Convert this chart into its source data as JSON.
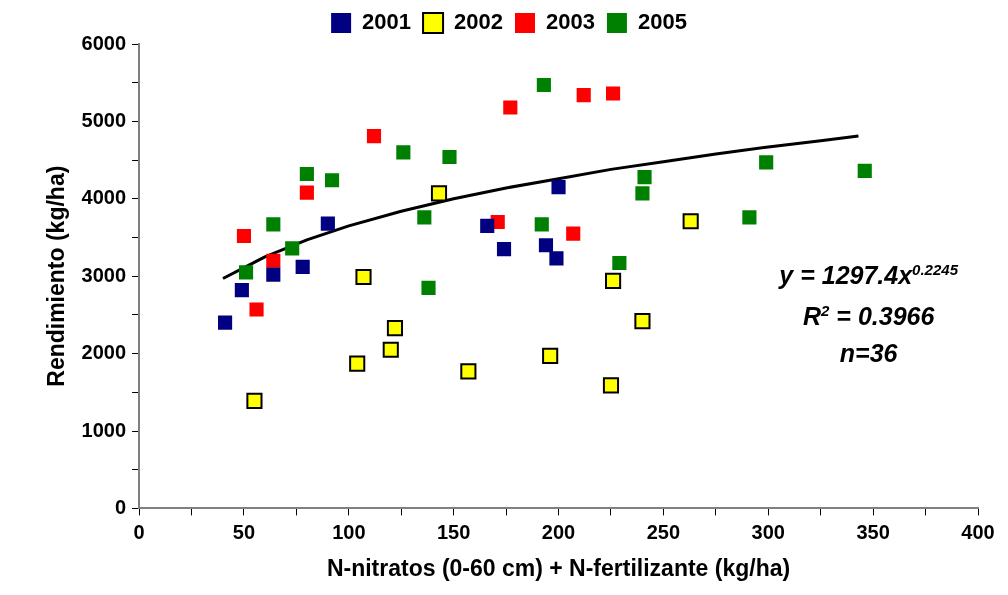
{
  "chart_data": {
    "type": "scatter",
    "xlabel": "N-nitratos (0-60 cm) + N-fertilizante (kg/ha)",
    "ylabel": "Rendimiento (kg/ha)",
    "xlim": [
      0,
      400
    ],
    "xticks": [
      0,
      {
        "value": 25,
        "label": null
      },
      50,
      {
        "value": 75,
        "label": null
      },
      100,
      {
        "value": 125,
        "label": null
      },
      150,
      {
        "value": 175,
        "label": null
      },
      200,
      {
        "value": 225,
        "label": null
      },
      250,
      {
        "value": 275,
        "label": null
      },
      300,
      {
        "value": 325,
        "label": null
      },
      350,
      {
        "value": 375,
        "label": null
      },
      400
    ],
    "ylim": [
      0,
      6000
    ],
    "yticks": [
      0,
      {
        "value": 500,
        "label": null
      },
      1000,
      {
        "value": 1500,
        "label": null
      },
      2000,
      {
        "value": 2500,
        "label": null
      },
      3000,
      {
        "value": 3500,
        "label": null
      },
      4000,
      {
        "value": 4500,
        "label": null
      },
      5000,
      {
        "value": 5500,
        "label": null
      },
      6000
    ],
    "grid": false,
    "legend": "top",
    "marker": "square",
    "series": [
      {
        "name": "2001",
        "color": "#000080",
        "x": [
          41,
          49,
          64,
          78,
          90,
          166,
          174,
          194,
          199,
          200
        ],
        "values": [
          2400,
          2820,
          3020,
          3120,
          3680,
          3650,
          3350,
          3400,
          3230,
          4150
        ]
      },
      {
        "name": "2002",
        "color": "#ffff00",
        "x": [
          55,
          107,
          104,
          120,
          122,
          143,
          157,
          196,
          226,
          225,
          240,
          263
        ],
        "values": [
          1390,
          2990,
          1870,
          2050,
          2330,
          4070,
          1770,
          1970,
          2940,
          1590,
          2420,
          3710
        ]
      },
      {
        "name": "2003",
        "color": "#ff0000",
        "x": [
          50,
          56,
          64,
          80,
          112,
          171,
          177,
          212,
          226,
          207
        ],
        "values": [
          3520,
          2570,
          3200,
          4080,
          4810,
          3700,
          5180,
          5340,
          5360,
          3550
        ]
      },
      {
        "name": "2005",
        "color": "#008000",
        "x": [
          51,
          64,
          73,
          80,
          92,
          126,
          148,
          193,
          192,
          136,
          241,
          240,
          299,
          291,
          346
        ],
        "values": [
          3050,
          3670,
          3360,
          4320,
          4240,
          4600,
          4540,
          5470,
          3670,
          3760,
          4280,
          4070,
          4470,
          3760,
          4360
        ]
      },
      {
        "color": "#008000",
        "x": [
          138,
          229
        ],
        "values": [
          2850,
          3170
        ]
      },
      {
        "type": "line",
        "color": "#000000",
        "marker": "none",
        "x": [
          40,
          60,
          80,
          100,
          125,
          150,
          175,
          200,
          225,
          250,
          275,
          300,
          325,
          343
        ],
        "values": [
          2970,
          3250,
          3470,
          3650,
          3840,
          4000,
          4140,
          4260,
          4380,
          4480,
          4580,
          4670,
          4750,
          4810
        ]
      }
    ],
    "annotations": [
      "y = 1297.4x$^{0.2245}$",
      "R$^{2}$ = 0.3966",
      "n=36"
    ]
  }
}
